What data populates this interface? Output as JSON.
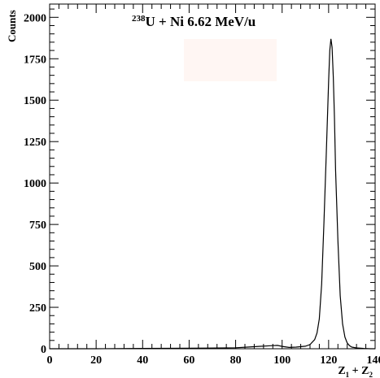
{
  "chart_data": {
    "type": "line",
    "title": {
      "superscript": "238",
      "text": "U + Ni  6.62 MeV/u"
    },
    "xlabel": {
      "base1": "Z",
      "sub1": "1",
      "plus": " + ",
      "base2": "Z",
      "sub2": "2"
    },
    "ylabel": "Counts",
    "xlim": [
      0,
      140
    ],
    "ylim": [
      0,
      2080
    ],
    "x_ticks": [
      0,
      20,
      40,
      60,
      80,
      100,
      120,
      140
    ],
    "x_tick_labels": [
      "0",
      "20",
      "40",
      "60",
      "80",
      "100",
      "120",
      "140"
    ],
    "y_ticks": [
      0,
      250,
      500,
      750,
      1000,
      1250,
      1500,
      1750,
      2000
    ],
    "y_tick_labels": [
      "0",
      "250",
      "500",
      "750",
      "1000",
      "1250",
      "1500",
      "1750",
      "2000"
    ],
    "series": [
      {
        "x": [
          0,
          20,
          40,
          60,
          80,
          85,
          90,
          95,
          98,
          100,
          103,
          106,
          110,
          112,
          114,
          115,
          116,
          117,
          118,
          119,
          120,
          120.5,
          121,
          121.5,
          122,
          122.5,
          123,
          124,
          125,
          126,
          127,
          128,
          129,
          130,
          132,
          135,
          138,
          140
        ],
        "y": [
          0,
          0,
          2,
          3,
          6,
          10,
          14,
          18,
          20,
          14,
          8,
          10,
          15,
          25,
          55,
          95,
          180,
          390,
          760,
          1180,
          1620,
          1800,
          1870,
          1820,
          1640,
          1400,
          1080,
          650,
          320,
          150,
          70,
          35,
          18,
          10,
          5,
          2,
          0,
          0
        ]
      }
    ],
    "grid": false,
    "legend": "none"
  }
}
